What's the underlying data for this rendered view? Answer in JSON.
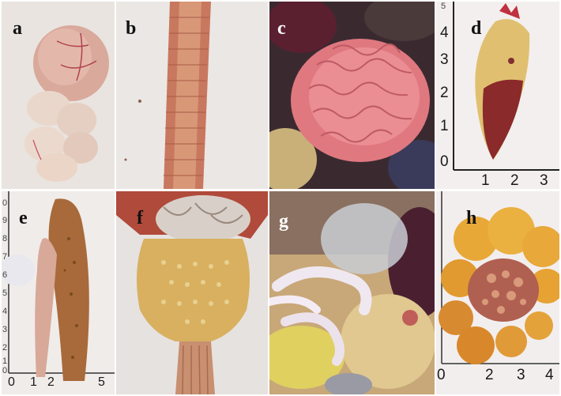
{
  "panels": [
    {
      "label": "a"
    },
    {
      "label": "b"
    },
    {
      "label": "c"
    },
    {
      "label": "d",
      "scale_ticks_y": [
        "5",
        "4",
        "3",
        "2",
        "1",
        "0"
      ],
      "scale_ticks_x": [
        "1",
        "2",
        "3"
      ]
    },
    {
      "label": "e",
      "scale_ticks_y": [
        "0",
        "9",
        "8",
        "7",
        "6",
        "5",
        "4",
        "3",
        "2",
        "1",
        "0"
      ],
      "scale_ticks_x": [
        "0",
        "1",
        "2",
        "5"
      ]
    },
    {
      "label": "f"
    },
    {
      "label": "g"
    },
    {
      "label": "h",
      "scale_ticks_x": [
        "0",
        "2",
        "3",
        "4"
      ]
    }
  ]
}
